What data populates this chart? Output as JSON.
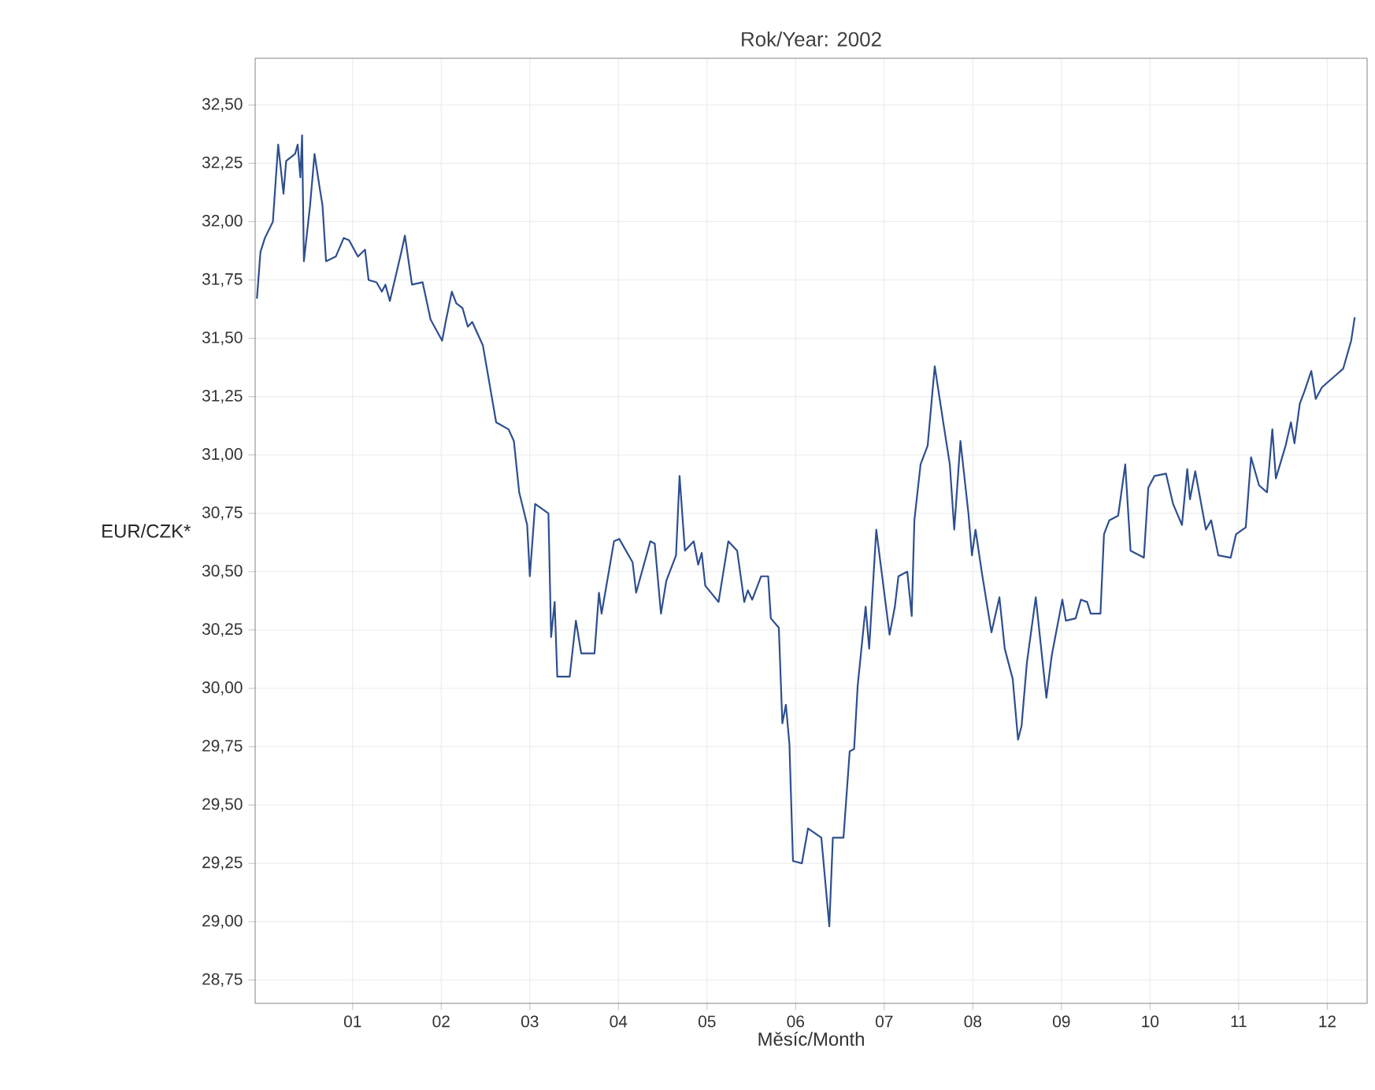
{
  "chart_data": {
    "type": "line",
    "title": "Rok/Year: 2002",
    "xlabel": "Měsíc/Month",
    "ylabel": "EUR/CZK*",
    "x": [
      -0.08,
      -0.04,
      0.01,
      0.1,
      0.16,
      0.22,
      0.25,
      0.35,
      0.38,
      0.41,
      0.43,
      0.45,
      0.52,
      0.57,
      0.63,
      0.66,
      0.7,
      0.81,
      0.9,
      0.96,
      1.06,
      1.14,
      1.18,
      1.27,
      1.33,
      1.37,
      1.42,
      1.55,
      1.59,
      1.67,
      1.79,
      1.88,
      2.01,
      2.05,
      2.12,
      2.17,
      2.24,
      2.3,
      2.35,
      2.47,
      2.62,
      2.76,
      2.82,
      2.88,
      2.97,
      3.0,
      3.06,
      3.21,
      3.24,
      3.28,
      3.31,
      3.45,
      3.52,
      3.58,
      3.73,
      3.78,
      3.81,
      3.95,
      4.01,
      4.16,
      4.2,
      4.36,
      4.41,
      4.48,
      4.54,
      4.65,
      4.69,
      4.75,
      4.85,
      4.9,
      4.94,
      4.98,
      5.13,
      5.24,
      5.34,
      5.42,
      5.46,
      5.51,
      5.61,
      5.69,
      5.72,
      5.81,
      5.85,
      5.89,
      5.93,
      5.97,
      6.07,
      6.14,
      6.29,
      6.38,
      6.42,
      6.54,
      6.61,
      6.66,
      6.7,
      6.79,
      6.83,
      6.91,
      7.06,
      7.12,
      7.16,
      7.26,
      7.31,
      7.34,
      7.41,
      7.49,
      7.57,
      7.67,
      7.74,
      7.79,
      7.86,
      7.95,
      7.99,
      8.03,
      8.1,
      8.21,
      8.3,
      8.36,
      8.45,
      8.51,
      8.55,
      8.61,
      8.71,
      8.83,
      8.89,
      9.01,
      9.05,
      9.16,
      9.22,
      9.29,
      9.33,
      9.44,
      9.48,
      9.54,
      9.64,
      9.72,
      9.78,
      9.93,
      9.98,
      10.05,
      10.18,
      10.26,
      10.36,
      10.42,
      10.45,
      10.51,
      10.63,
      10.69,
      10.77,
      10.91,
      10.97,
      11.08,
      11.14,
      11.23,
      11.32,
      11.38,
      11.42,
      11.53,
      11.59,
      11.63,
      11.69,
      11.74,
      11.82,
      11.87,
      11.94,
      12.09,
      12.18,
      12.27,
      12.31
    ],
    "series": [
      {
        "color": "#2e4e8f",
        "values": [
          31.67,
          31.87,
          31.93,
          32.0,
          32.33,
          32.12,
          32.26,
          32.29,
          32.33,
          32.19,
          32.37,
          31.83,
          32.07,
          32.29,
          32.14,
          32.07,
          31.83,
          31.85,
          31.93,
          31.92,
          31.85,
          31.88,
          31.75,
          31.74,
          31.7,
          31.73,
          31.66,
          31.87,
          31.94,
          31.73,
          31.74,
          31.58,
          31.49,
          31.57,
          31.7,
          31.65,
          31.63,
          31.55,
          31.57,
          31.47,
          31.14,
          31.11,
          31.06,
          30.84,
          30.7,
          30.48,
          30.79,
          30.75,
          30.22,
          30.37,
          30.05,
          30.05,
          30.29,
          30.15,
          30.15,
          30.41,
          30.32,
          30.63,
          30.64,
          30.54,
          30.41,
          30.63,
          30.62,
          30.32,
          30.46,
          30.57,
          30.91,
          30.59,
          30.63,
          30.53,
          30.58,
          30.44,
          30.37,
          30.63,
          30.59,
          30.37,
          30.42,
          30.38,
          30.48,
          30.48,
          30.3,
          30.26,
          29.85,
          29.93,
          29.76,
          29.26,
          29.25,
          29.4,
          29.36,
          28.98,
          29.36,
          29.36,
          29.73,
          29.74,
          30.01,
          30.35,
          30.17,
          30.68,
          30.23,
          30.35,
          30.48,
          30.5,
          30.31,
          30.72,
          30.96,
          31.04,
          31.38,
          31.13,
          30.96,
          30.68,
          31.06,
          30.75,
          30.57,
          30.68,
          30.5,
          30.24,
          30.39,
          30.17,
          30.04,
          29.78,
          29.84,
          30.11,
          30.39,
          29.96,
          30.14,
          30.38,
          30.29,
          30.3,
          30.38,
          30.37,
          30.32,
          30.32,
          30.66,
          30.72,
          30.74,
          30.96,
          30.59,
          30.56,
          30.86,
          30.91,
          30.92,
          30.79,
          30.7,
          30.94,
          30.81,
          30.93,
          30.68,
          30.72,
          30.57,
          30.56,
          30.66,
          30.69,
          30.99,
          30.87,
          30.84,
          31.11,
          30.9,
          31.04,
          31.14,
          31.05,
          31.22,
          31.27,
          31.36,
          31.24,
          31.29,
          31.34,
          31.37,
          31.49,
          31.59
        ]
      }
    ],
    "xlim": [
      -0.1,
      12.45
    ],
    "ylim": [
      28.65,
      32.7
    ],
    "xticks": [
      {
        "value": 1,
        "label": "01"
      },
      {
        "value": 2,
        "label": "02"
      },
      {
        "value": 3,
        "label": "03"
      },
      {
        "value": 4,
        "label": "04"
      },
      {
        "value": 5,
        "label": "05"
      },
      {
        "value": 6,
        "label": "06"
      },
      {
        "value": 7,
        "label": "07"
      },
      {
        "value": 8,
        "label": "08"
      },
      {
        "value": 9,
        "label": "09"
      },
      {
        "value": 10,
        "label": "10"
      },
      {
        "value": 11,
        "label": "11"
      },
      {
        "value": 12,
        "label": "12"
      }
    ],
    "yticks": [
      {
        "value": 28.75,
        "label": "28,75"
      },
      {
        "value": 29.0,
        "label": "29,00"
      },
      {
        "value": 29.25,
        "label": "29,25"
      },
      {
        "value": 29.5,
        "label": "29,50"
      },
      {
        "value": 29.75,
        "label": "29,75"
      },
      {
        "value": 30.0,
        "label": "30,00"
      },
      {
        "value": 30.25,
        "label": "30,25"
      },
      {
        "value": 30.5,
        "label": "30,50"
      },
      {
        "value": 30.75,
        "label": "30,75"
      },
      {
        "value": 31.0,
        "label": "31,00"
      },
      {
        "value": 31.25,
        "label": "31,25"
      },
      {
        "value": 31.5,
        "label": "31,50"
      },
      {
        "value": 31.75,
        "label": "31,75"
      },
      {
        "value": 32.0,
        "label": "32,00"
      },
      {
        "value": 32.25,
        "label": "32,25"
      },
      {
        "value": 32.5,
        "label": "32,50"
      }
    ],
    "grid": true,
    "legend": false,
    "marker": "none",
    "line_style": "solid"
  }
}
